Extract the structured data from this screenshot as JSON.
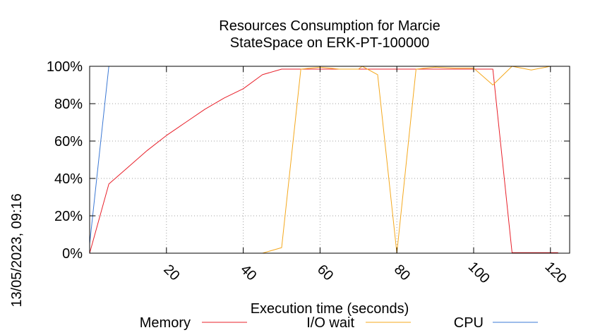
{
  "chart_data": {
    "type": "line",
    "title_lines": [
      "Resources Consumption for Marcie",
      "StateSpace on ERK-PT-100000"
    ],
    "xlabel": "Execution time (seconds)",
    "ylabel": "",
    "side_label": "13/05/2023, 09:16",
    "xlim": [
      0,
      125
    ],
    "ylim": [
      0,
      100
    ],
    "x_ticks": [
      20,
      40,
      60,
      80,
      100,
      120
    ],
    "y_ticks": [
      0,
      20,
      40,
      60,
      80,
      100
    ],
    "y_tick_labels": [
      "0%",
      "20%",
      "40%",
      "60%",
      "80%",
      "100%"
    ],
    "grid": true,
    "legend_position": "bottom",
    "series": [
      {
        "name": "Memory",
        "color": "#e8202a",
        "points": [
          [
            0,
            0
          ],
          [
            5,
            37
          ],
          [
            10,
            46
          ],
          [
            15,
            55
          ],
          [
            20,
            63
          ],
          [
            25,
            70
          ],
          [
            30,
            77
          ],
          [
            35,
            83
          ],
          [
            40,
            88
          ],
          [
            45,
            95.5
          ],
          [
            50,
            98.5
          ],
          [
            55,
            98.5
          ],
          [
            60,
            98.5
          ],
          [
            65,
            98.5
          ],
          [
            70,
            98.5
          ],
          [
            75,
            98.5
          ],
          [
            80,
            98.5
          ],
          [
            85,
            98.5
          ],
          [
            90,
            98.5
          ],
          [
            95,
            98.5
          ],
          [
            100,
            98.5
          ],
          [
            105,
            98.5
          ],
          [
            110,
            0.3
          ],
          [
            115,
            0.3
          ],
          [
            120,
            0.3
          ],
          [
            122,
            0.3
          ]
        ]
      },
      {
        "name": "I/O wait",
        "color": "#f4a81d",
        "points": [
          [
            45,
            0
          ],
          [
            50,
            3
          ],
          [
            55,
            98.5
          ],
          [
            60,
            99.5
          ],
          [
            65,
            98.5
          ],
          [
            70,
            98.5
          ],
          [
            71,
            100
          ],
          [
            75,
            95.5
          ],
          [
            80,
            0
          ],
          [
            85,
            98.5
          ],
          [
            90,
            99.5
          ],
          [
            95,
            99
          ],
          [
            100,
            99
          ],
          [
            105,
            90
          ],
          [
            110,
            100
          ],
          [
            115,
            98
          ],
          [
            120,
            100
          ]
        ]
      },
      {
        "name": "CPU",
        "color": "#3b78d4",
        "points": [
          [
            0,
            5
          ],
          [
            5,
            100
          ],
          [
            10,
            100
          ],
          [
            120,
            100
          ],
          [
            122,
            100
          ]
        ]
      }
    ]
  }
}
